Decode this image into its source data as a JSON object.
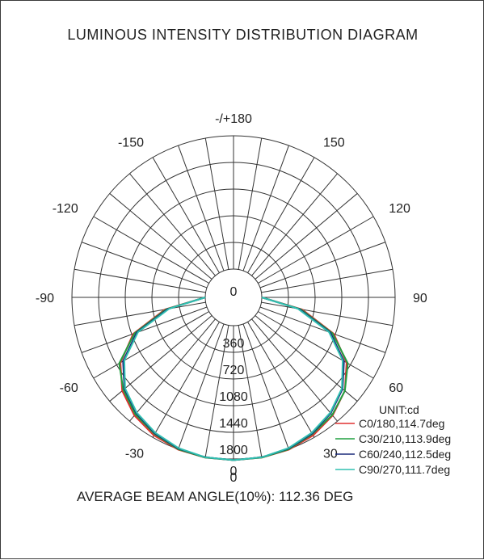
{
  "title": "LUMINOUS INTENSITY DISTRIBUTION DIAGRAM",
  "average_label": "AVERAGE BEAM ANGLE(10%): 112.36 DEG",
  "chart_data": {
    "type": "polar",
    "title": "LUMINOUS INTENSITY DISTRIBUTION DIAGRAM",
    "unit_label": "UNIT:cd",
    "radial_max": 1800,
    "radial_ticks": [
      0,
      360,
      720,
      1080,
      1440,
      1800
    ],
    "radial_tick_labels": [
      "0",
      "360",
      "720",
      "1080",
      "1440",
      "1800"
    ],
    "angle_step_deg": 10,
    "angle_labels": [
      "-/+180",
      "150",
      "120",
      "90",
      "60",
      "30",
      "0",
      "-30",
      "-60",
      "-90",
      "-120",
      "-150"
    ],
    "angle_label_values": [
      180,
      150,
      120,
      90,
      60,
      30,
      0,
      -30,
      -60,
      -90,
      -120,
      -150
    ],
    "grid": true,
    "legend_position": "bottom-right",
    "series": [
      {
        "name": "C0/180,114.7deg",
        "color": "#e03030",
        "angles": [
          -90,
          -80,
          -70,
          -60,
          -50,
          -40,
          -30,
          -20,
          -10,
          0,
          10,
          20,
          30,
          40,
          50,
          60,
          70,
          80,
          90
        ],
        "values": [
          0,
          560,
          1060,
          1380,
          1580,
          1700,
          1770,
          1805,
          1815,
          1815,
          1815,
          1805,
          1770,
          1700,
          1580,
          1380,
          1060,
          560,
          0
        ]
      },
      {
        "name": "C30/210,113.9deg",
        "color": "#20a040",
        "angles": [
          -90,
          -80,
          -70,
          -60,
          -50,
          -40,
          -30,
          -20,
          -10,
          0,
          10,
          20,
          30,
          40,
          50,
          60,
          70,
          80,
          90
        ],
        "values": [
          0,
          540,
          1040,
          1400,
          1560,
          1680,
          1750,
          1800,
          1815,
          1815,
          1815,
          1800,
          1750,
          1690,
          1580,
          1400,
          1040,
          540,
          0
        ]
      },
      {
        "name": "C60/240,112.5deg",
        "color": "#1a2a7a",
        "angles": [
          -90,
          -80,
          -70,
          -60,
          -50,
          -40,
          -30,
          -20,
          -10,
          0,
          10,
          20,
          30,
          40,
          50,
          60,
          70,
          80,
          90
        ],
        "values": [
          0,
          520,
          1010,
          1340,
          1540,
          1660,
          1740,
          1790,
          1810,
          1815,
          1810,
          1790,
          1740,
          1660,
          1540,
          1340,
          1010,
          520,
          0
        ]
      },
      {
        "name": "C90/270,111.7deg",
        "color": "#30c0b0",
        "angles": [
          -90,
          -80,
          -70,
          -60,
          -50,
          -40,
          -30,
          -20,
          -10,
          0,
          10,
          20,
          30,
          40,
          50,
          60,
          70,
          80,
          90
        ],
        "values": [
          0,
          500,
          990,
          1320,
          1530,
          1650,
          1730,
          1785,
          1810,
          1815,
          1810,
          1785,
          1730,
          1650,
          1530,
          1320,
          990,
          500,
          0
        ]
      }
    ]
  }
}
